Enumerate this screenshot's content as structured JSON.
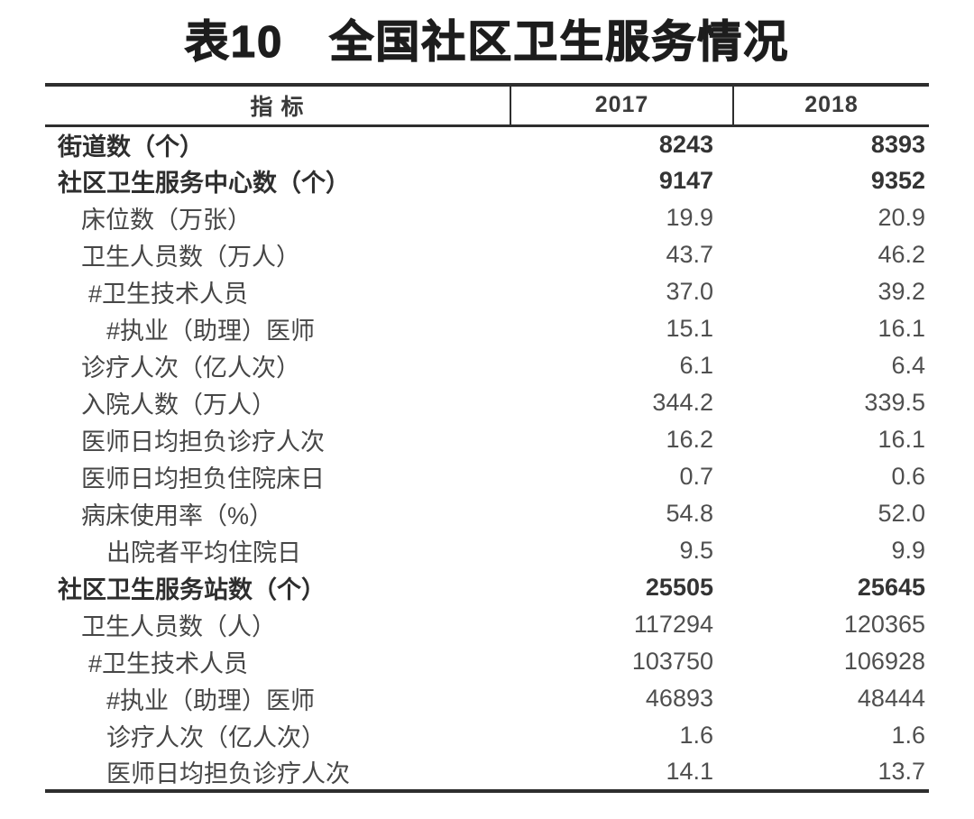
{
  "title": "表10　全国社区卫生服务情况",
  "table": {
    "headers": [
      "指 标",
      "2017",
      "2018"
    ],
    "rows": [
      {
        "label": "街道数（个）",
        "v2017": "8243",
        "v2018": "8393",
        "bold": true,
        "indent": 0
      },
      {
        "label": "社区卫生服务中心数（个）",
        "v2017": "9147",
        "v2018": "9352",
        "bold": true,
        "indent": 0
      },
      {
        "label": "床位数（万张）",
        "v2017": "19.9",
        "v2018": "20.9",
        "bold": false,
        "indent": 1
      },
      {
        "label": "卫生人员数（万人）",
        "v2017": "43.7",
        "v2018": "46.2",
        "bold": false,
        "indent": 1
      },
      {
        "label": "#卫生技术人员",
        "v2017": "37.0",
        "v2018": "39.2",
        "bold": false,
        "indent": 2
      },
      {
        "label": "#执业（助理）医师",
        "v2017": "15.1",
        "v2018": "16.1",
        "bold": false,
        "indent": 3
      },
      {
        "label": "诊疗人次（亿人次）",
        "v2017": "6.1",
        "v2018": "6.4",
        "bold": false,
        "indent": 1
      },
      {
        "label": "入院人数（万人）",
        "v2017": "344.2",
        "v2018": "339.5",
        "bold": false,
        "indent": 1
      },
      {
        "label": "医师日均担负诊疗人次",
        "v2017": "16.2",
        "v2018": "16.1",
        "bold": false,
        "indent": 1
      },
      {
        "label": "医师日均担负住院床日",
        "v2017": "0.7",
        "v2018": "0.6",
        "bold": false,
        "indent": 1
      },
      {
        "label": "病床使用率（%）",
        "v2017": "54.8",
        "v2018": "52.0",
        "bold": false,
        "indent": 1
      },
      {
        "label": "出院者平均住院日",
        "v2017": "9.5",
        "v2018": "9.9",
        "bold": false,
        "indent": 3
      },
      {
        "label": "社区卫生服务站数（个）",
        "v2017": "25505",
        "v2018": "25645",
        "bold": true,
        "indent": 0
      },
      {
        "label": "卫生人员数（人）",
        "v2017": "117294",
        "v2018": "120365",
        "bold": false,
        "indent": 1
      },
      {
        "label": "#卫生技术人员",
        "v2017": "103750",
        "v2018": "106928",
        "bold": false,
        "indent": 2
      },
      {
        "label": "#执业（助理）医师",
        "v2017": "46893",
        "v2018": "48444",
        "bold": false,
        "indent": 3
      },
      {
        "label": "诊疗人次（亿人次）",
        "v2017": "1.6",
        "v2018": "1.6",
        "bold": false,
        "indent": 3
      },
      {
        "label": "医师日均担负诊疗人次",
        "v2017": "14.1",
        "v2018": "13.7",
        "bold": false,
        "indent": 3
      }
    ]
  },
  "colors": {
    "background": "#ffffff",
    "border": "#2e2e2e",
    "title_text": "#1d1d1d",
    "bold_text": "#343434",
    "regular_text": "#4f4f4f"
  }
}
